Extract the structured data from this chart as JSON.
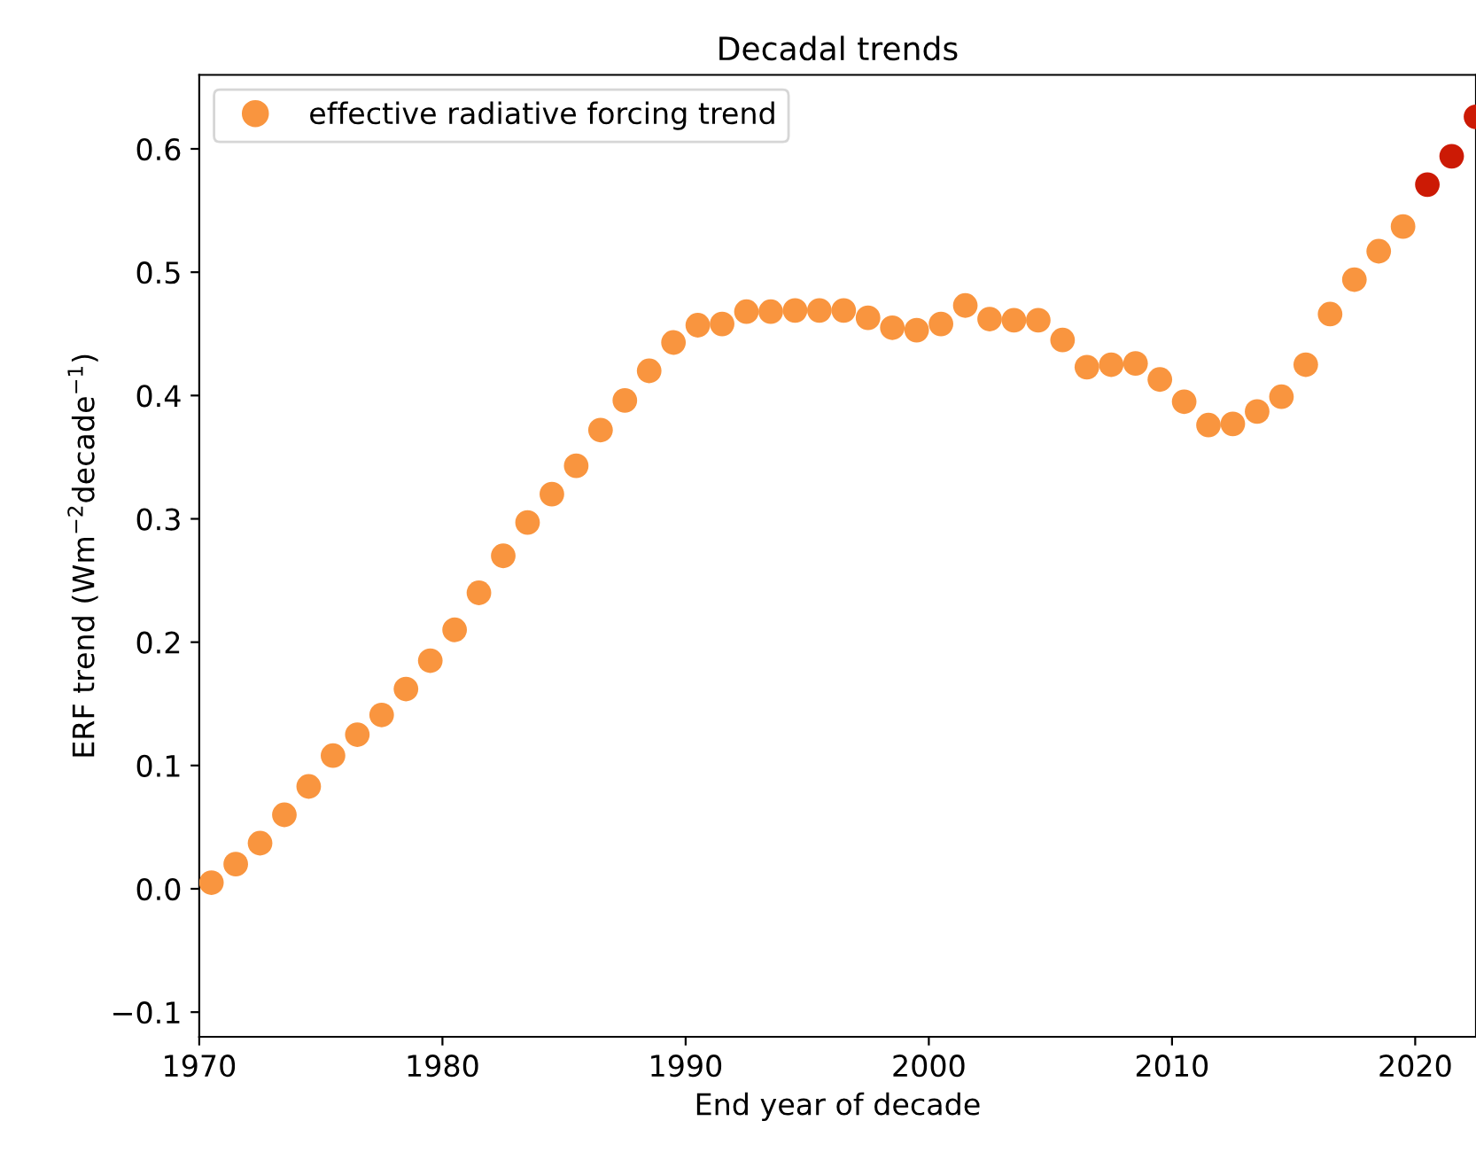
{
  "chart_data": {
    "type": "scatter",
    "title": "Decadal trends",
    "xlabel": "End year of decade",
    "ylabel": "ERF trend (Wm$^{−2}$decade$^{−1}$)",
    "x": [
      1970.5,
      1971.5,
      1972.5,
      1973.5,
      1974.5,
      1975.5,
      1976.5,
      1977.5,
      1978.5,
      1979.5,
      1980.5,
      1981.5,
      1982.5,
      1983.5,
      1984.5,
      1985.5,
      1986.5,
      1987.5,
      1988.5,
      1989.5,
      1990.5,
      1991.5,
      1992.5,
      1993.5,
      1994.5,
      1995.5,
      1996.5,
      1997.5,
      1998.5,
      1999.5,
      2000.5,
      2001.5,
      2002.5,
      2003.5,
      2004.5,
      2005.5,
      2006.5,
      2007.5,
      2008.5,
      2009.5,
      2010.5,
      2011.5,
      2012.5,
      2013.5,
      2014.5,
      2015.5,
      2016.5,
      2017.5,
      2018.5,
      2019.5,
      2020.5,
      2021.5,
      2022.5
    ],
    "series": [
      {
        "name": "effective radiative forcing trend",
        "color": "#f9953f",
        "values": [
          0.005,
          0.02,
          0.037,
          0.06,
          0.083,
          0.108,
          0.125,
          0.141,
          0.162,
          0.185,
          0.21,
          0.24,
          0.27,
          0.297,
          0.32,
          0.343,
          0.372,
          0.396,
          0.42,
          0.443,
          0.457,
          0.458,
          0.468,
          0.468,
          0.469,
          0.469,
          0.469,
          0.463,
          0.455,
          0.453,
          0.458,
          0.473,
          0.462,
          0.461,
          0.461,
          0.445,
          0.423,
          0.425,
          0.426,
          0.413,
          0.395,
          0.376,
          0.377,
          0.387,
          0.399,
          0.425,
          0.466,
          0.494,
          0.517,
          0.537,
          0.571,
          0.594,
          0.626
        ],
        "colors": [
          "#f9953f",
          "#f9953f",
          "#f9953f",
          "#f9953f",
          "#f9953f",
          "#f9953f",
          "#f9953f",
          "#f9953f",
          "#f9953f",
          "#f9953f",
          "#f9953f",
          "#f9953f",
          "#f9953f",
          "#f9953f",
          "#f9953f",
          "#f9953f",
          "#f9953f",
          "#f9953f",
          "#f9953f",
          "#f9953f",
          "#f9953f",
          "#f9953f",
          "#f9953f",
          "#f9953f",
          "#f9953f",
          "#f9953f",
          "#f9953f",
          "#f9953f",
          "#f9953f",
          "#f9953f",
          "#f9953f",
          "#f9953f",
          "#f9953f",
          "#f9953f",
          "#f9953f",
          "#f9953f",
          "#f9953f",
          "#f9953f",
          "#f9953f",
          "#f9953f",
          "#f9953f",
          "#f9953f",
          "#f9953f",
          "#f9953f",
          "#f9953f",
          "#f9953f",
          "#f9953f",
          "#f9953f",
          "#f9953f",
          "#f9953f",
          "#cc1a05",
          "#cc1a05",
          "#cc1a05"
        ]
      }
    ],
    "xlim": [
      1970,
      2022.5
    ],
    "xticks": [
      1970,
      1980,
      1990,
      2000,
      2010,
      2020
    ],
    "ylim": [
      -0.12,
      0.66
    ],
    "yticks": [
      {
        "value": -0.1,
        "label": "−0.1"
      },
      {
        "value": 0,
        "label": "0.0"
      },
      0.1,
      0.2,
      0.3,
      0.4,
      0.5,
      0.6
    ],
    "legend": "top left",
    "marker": "circle",
    "grid": false
  }
}
